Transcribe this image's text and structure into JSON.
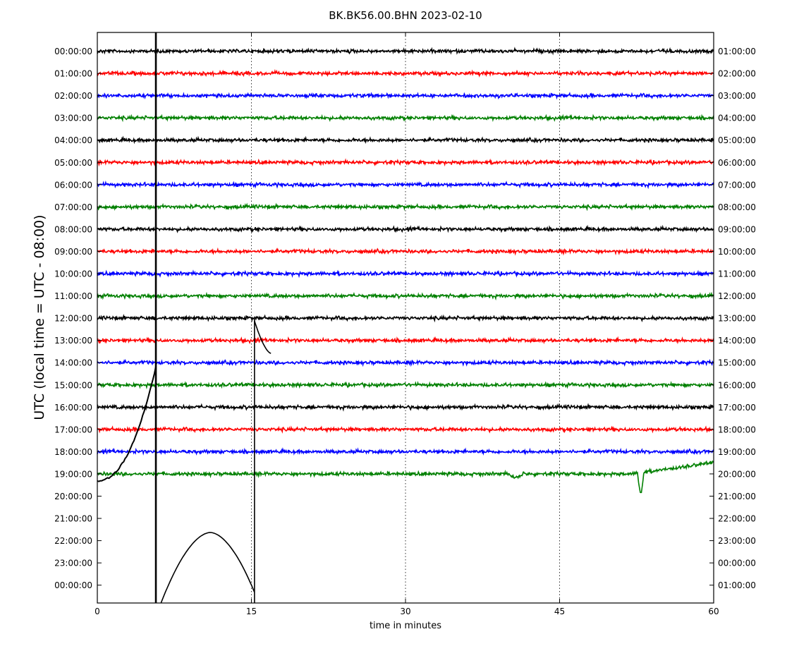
{
  "chart_data": {
    "type": "line",
    "subtype": "helicorder",
    "title": "BK.BK56.00.BHN 2023-02-10",
    "xlabel": "time in minutes",
    "ylabel": "UTC (local time = UTC - 08:00)",
    "xlim": [
      0,
      60
    ],
    "x_ticks": [
      "0",
      "15",
      "30",
      "45",
      "60"
    ],
    "x_gridlines": [
      15,
      30,
      45
    ],
    "grid": "vertical dotted",
    "line_colors": [
      "#000000",
      "#ff0000",
      "#0000ff",
      "#008000"
    ],
    "left_labels": [
      "00:00:00",
      "01:00:00",
      "02:00:00",
      "03:00:00",
      "04:00:00",
      "05:00:00",
      "06:00:00",
      "07:00:00",
      "08:00:00",
      "09:00:00",
      "10:00:00",
      "11:00:00",
      "12:00:00",
      "13:00:00",
      "14:00:00",
      "15:00:00",
      "16:00:00",
      "17:00:00",
      "18:00:00",
      "19:00:00",
      "20:00:00",
      "21:00:00",
      "22:00:00",
      "23:00:00",
      "00:00:00"
    ],
    "right_labels": [
      "01:00:00",
      "02:00:00",
      "03:00:00",
      "04:00:00",
      "05:00:00",
      "06:00:00",
      "07:00:00",
      "08:00:00",
      "09:00:00",
      "10:00:00",
      "11:00:00",
      "12:00:00",
      "13:00:00",
      "14:00:00",
      "15:00:00",
      "16:00:00",
      "17:00:00",
      "18:00:00",
      "19:00:00",
      "20:00:00",
      "21:00:00",
      "22:00:00",
      "23:00:00",
      "00:00:00",
      "01:00:00"
    ],
    "trace_rows": 20,
    "vertical_events_minutes": [
      5.7,
      15.3
    ]
  }
}
